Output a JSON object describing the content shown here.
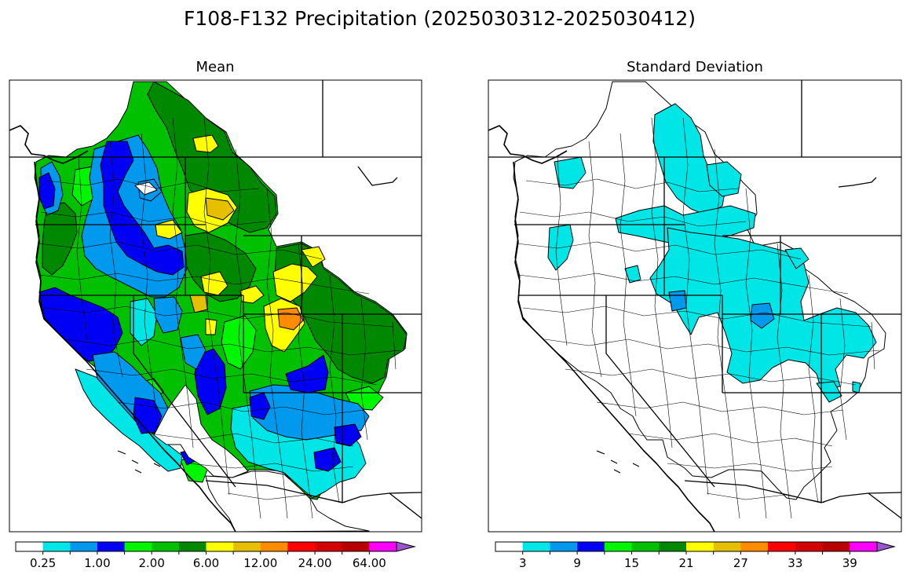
{
  "title": "F108-F132 Precipitation (2025030312-2025030412)",
  "panels": [
    {
      "subtitle": "Mean",
      "colorbar": {
        "colors": [
          "#ffffff",
          "#00e5e5",
          "#0099ee",
          "#0000f5",
          "#00f500",
          "#00c000",
          "#008800",
          "#ffff00",
          "#e6bf00",
          "#ff8c00",
          "#ff0000",
          "#d40000",
          "#b80000",
          "#ff00ff",
          "#9a55cc"
        ],
        "tick_labels": [
          "0.25",
          "1.00",
          "2.00",
          "6.00",
          "12.00",
          "24.00",
          "64.00"
        ],
        "extend": "max"
      }
    },
    {
      "subtitle": "Standard Deviation",
      "colorbar": {
        "colors": [
          "#ffffff",
          "#00e5e5",
          "#0099ee",
          "#0000f5",
          "#00f500",
          "#00c000",
          "#008800",
          "#ffff00",
          "#e6bf00",
          "#ff8c00",
          "#ff0000",
          "#d40000",
          "#b80000",
          "#ff00ff",
          "#9a55cc"
        ],
        "tick_labels": [
          "3",
          "9",
          "15",
          "21",
          "27",
          "33",
          "39"
        ],
        "extend": "max"
      }
    }
  ]
}
